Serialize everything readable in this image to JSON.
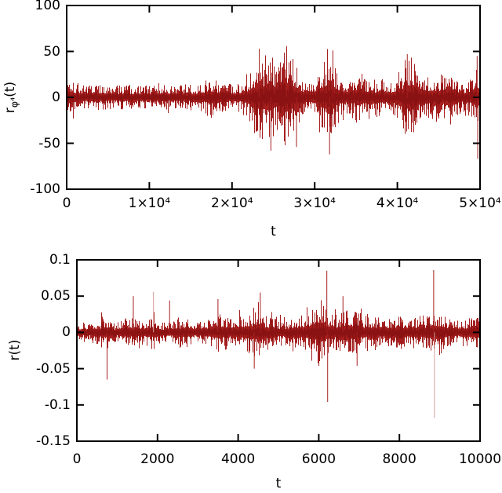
{
  "figure": {
    "background": "#ffffff",
    "text_color": "#000000",
    "frame_color": "#000000"
  },
  "chart_data": [
    {
      "type": "line",
      "title": "",
      "xlabel": "t",
      "ylabel_parts": {
        "base": "r",
        "sub": "φ⁴",
        "rest": "(t)"
      },
      "xlim": [
        0,
        50000
      ],
      "ylim": [
        -100,
        100
      ],
      "grid": false,
      "legend": null,
      "xticks": [
        {
          "value": 0,
          "label": "0"
        },
        {
          "value": 10000,
          "label": "1×10⁴"
        },
        {
          "value": 20000,
          "label": "2×10⁴"
        },
        {
          "value": 30000,
          "label": "3×10⁴"
        },
        {
          "value": 40000,
          "label": "4×10⁴"
        },
        {
          "value": 50000,
          "label": "5×10⁴"
        }
      ],
      "yticks": [
        {
          "value": 100,
          "label": "100"
        },
        {
          "value": 50,
          "label": "50"
        },
        {
          "value": 0,
          "label": "0"
        },
        {
          "value": -50,
          "label": "-50"
        },
        {
          "value": -100,
          "label": "-100"
        }
      ],
      "line_color": "#a51f1f",
      "core_color": "#8b1212",
      "faint_color": "#d89c9c",
      "series": [
        {
          "name": "r_phi4_returns",
          "description": "zero-mean noisy return series with volatility clustering",
          "envelope": {
            "x": [
              0,
              500,
              1500,
              3000,
              5000,
              7000,
              9000,
              11000,
              13000,
              15000,
              16000,
              17000,
              17500,
              18000,
              19000,
              20000,
              21000,
              21800,
              22300,
              22800,
              23300,
              23800,
              24300,
              24800,
              25300,
              25800,
              26300,
              26800,
              27300,
              27800,
              28300,
              28800,
              29300,
              30000,
              30500,
              31000,
              31500,
              32000,
              32500,
              33000,
              33500,
              34000,
              35000,
              35500,
              36000,
              37000,
              38000,
              39000,
              40000,
              40500,
              41000,
              41500,
              42000,
              42500,
              43000,
              44000,
              44500,
              45000,
              46000,
              46500,
              47000,
              48000,
              48500,
              49000,
              49500,
              50000
            ],
            "amp": [
              26,
              20,
              15,
              14,
              13,
              14,
              13,
              14,
              13,
              15,
              14,
              20,
              24,
              20,
              15,
              15,
              17,
              22,
              32,
              42,
              50,
              45,
              52,
              48,
              38,
              42,
              52,
              55,
              45,
              38,
              26,
              20,
              18,
              22,
              28,
              40,
              50,
              48,
              38,
              26,
              20,
              20,
              26,
              28,
              24,
              19,
              21,
              18,
              24,
              32,
              42,
              46,
              40,
              34,
              26,
              24,
              28,
              26,
              24,
              30,
              22,
              17,
              19,
              22,
              32,
              36
            ]
          },
          "spikes": [
            {
              "t": 23300,
              "y": 53,
              "faint": false
            },
            {
              "t": 24700,
              "y": -58,
              "faint": false
            },
            {
              "t": 26600,
              "y": 56,
              "faint": false
            },
            {
              "t": 27800,
              "y": -54,
              "faint": false
            },
            {
              "t": 31800,
              "y": -62,
              "faint": false
            },
            {
              "t": 32200,
              "y": 51,
              "faint": false
            },
            {
              "t": 41200,
              "y": 47,
              "faint": false
            },
            {
              "t": 49650,
              "y": 45,
              "faint": false
            },
            {
              "t": 49720,
              "y": -67,
              "faint": false
            }
          ]
        }
      ]
    },
    {
      "type": "line",
      "title": "",
      "xlabel": "t",
      "ylabel_parts": {
        "base": "r",
        "sub": "",
        "rest": "(t)"
      },
      "xlim": [
        0,
        10000
      ],
      "ylim": [
        -0.15,
        0.1
      ],
      "grid": false,
      "legend": null,
      "xticks": [
        {
          "value": 0,
          "label": "0"
        },
        {
          "value": 2000,
          "label": "2000"
        },
        {
          "value": 4000,
          "label": "4000"
        },
        {
          "value": 6000,
          "label": "6000"
        },
        {
          "value": 8000,
          "label": "8000"
        },
        {
          "value": 10000,
          "label": "10000"
        }
      ],
      "yticks": [
        {
          "value": 0.1,
          "label": "0.1"
        },
        {
          "value": 0.05,
          "label": "0.05"
        },
        {
          "value": 0,
          "label": "0"
        },
        {
          "value": -0.05,
          "label": "-0.05"
        },
        {
          "value": -0.1,
          "label": "-0.1"
        },
        {
          "value": -0.15,
          "label": "-0.15"
        }
      ],
      "line_color": "#a51f1f",
      "core_color": "#8b1212",
      "faint_color": "#d89c9c",
      "series": [
        {
          "name": "r_returns",
          "description": "zero-mean noisy return series with intermittent extreme spikes",
          "envelope": {
            "x": [
              0,
              200,
              500,
              700,
              900,
              1100,
              1300,
              1500,
              1700,
              1900,
              2100,
              2300,
              2500,
              2700,
              2900,
              3100,
              3300,
              3500,
              3700,
              3900,
              4100,
              4300,
              4500,
              4700,
              4900,
              5100,
              5300,
              5500,
              5700,
              5900,
              6050,
              6200,
              6400,
              6600,
              6800,
              7000,
              7200,
              7400,
              7600,
              7800,
              8000,
              8200,
              8400,
              8600,
              8800,
              9000,
              9200,
              9400,
              9600,
              9800,
              10000
            ],
            "amp": [
              0.018,
              0.013,
              0.016,
              0.026,
              0.014,
              0.016,
              0.022,
              0.018,
              0.02,
              0.024,
              0.014,
              0.016,
              0.02,
              0.022,
              0.014,
              0.016,
              0.022,
              0.028,
              0.024,
              0.02,
              0.026,
              0.032,
              0.034,
              0.026,
              0.02,
              0.018,
              0.02,
              0.024,
              0.028,
              0.036,
              0.05,
              0.032,
              0.024,
              0.03,
              0.034,
              0.028,
              0.022,
              0.024,
              0.02,
              0.022,
              0.024,
              0.02,
              0.022,
              0.024,
              0.028,
              0.034,
              0.02,
              0.017,
              0.019,
              0.022,
              0.02
            ]
          },
          "spikes": [
            {
              "t": 750,
              "y": -0.065,
              "faint": false
            },
            {
              "t": 1400,
              "y": 0.05,
              "faint": false
            },
            {
              "t": 1900,
              "y": 0.056,
              "faint": true
            },
            {
              "t": 2300,
              "y": 0.044,
              "faint": false
            },
            {
              "t": 3500,
              "y": 0.046,
              "faint": false
            },
            {
              "t": 4400,
              "y": -0.05,
              "faint": false
            },
            {
              "t": 4550,
              "y": 0.055,
              "faint": false
            },
            {
              "t": 6200,
              "y": 0.085,
              "faint": false
            },
            {
              "t": 6220,
              "y": -0.096,
              "faint": false
            },
            {
              "t": 6600,
              "y": 0.05,
              "faint": false
            },
            {
              "t": 6950,
              "y": -0.046,
              "faint": false
            },
            {
              "t": 8850,
              "y": 0.086,
              "faint": false
            },
            {
              "t": 8870,
              "y": -0.118,
              "faint": true
            }
          ]
        }
      ]
    }
  ]
}
